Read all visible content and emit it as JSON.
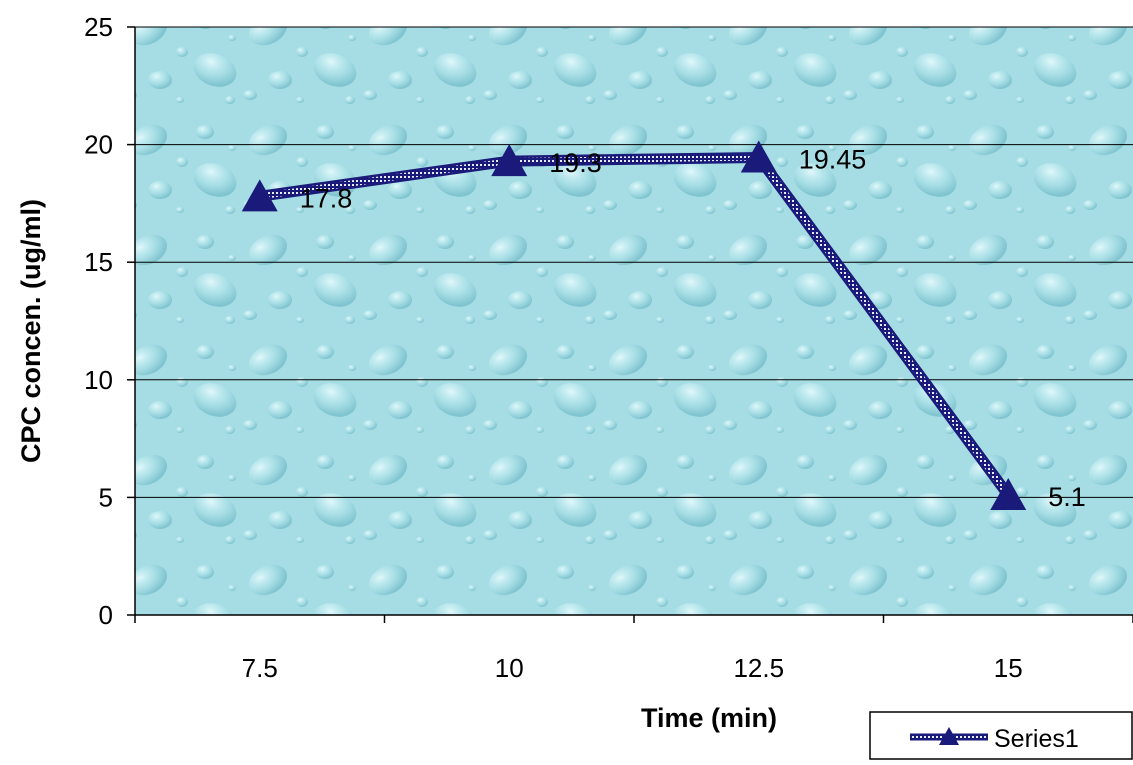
{
  "chart_data": {
    "type": "line",
    "title": "",
    "xlabel": "Time (min)",
    "ylabel": "CPC concen. (ug/ml)",
    "categories": [
      "7.5",
      "10",
      "12.5",
      "15"
    ],
    "series": [
      {
        "name": "Series1",
        "values": [
          17.8,
          19.3,
          19.45,
          5.1
        ],
        "color": "#1a1a7a"
      }
    ],
    "data_labels": [
      "17.8",
      "19.3",
      "19.45",
      "5.1"
    ],
    "ylim": [
      0,
      25
    ],
    "yticks": [
      "0",
      "5",
      "10",
      "15",
      "20",
      "25"
    ],
    "grid": "horizontal",
    "legend_position": "bottom-right",
    "plot_background": "#9fd8df",
    "gridline_color": "#000000"
  }
}
